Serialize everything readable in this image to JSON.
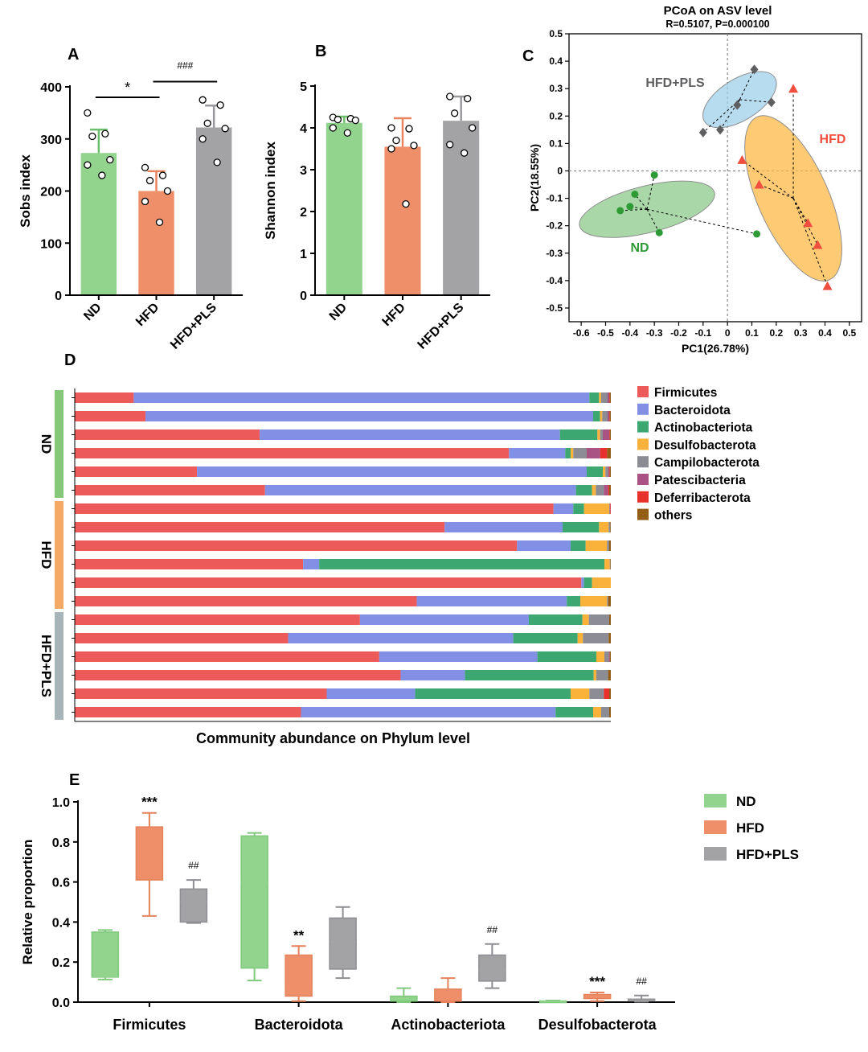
{
  "chart_data": [
    {
      "panel": "A",
      "type": "bar",
      "ylabel": "Sobs index",
      "ylim": [
        0,
        400
      ],
      "yticks": [
        0,
        100,
        200,
        300,
        400
      ],
      "categories": [
        "ND",
        "HFD",
        "HFD+PLS"
      ],
      "colors": [
        "#92d38e",
        "#ee8f6a",
        "#a3a3a6"
      ],
      "errcolors": [
        "#6cbf6a",
        "#e8845e",
        "#9a9a9e"
      ],
      "values": [
        273,
        200,
        322
      ],
      "err": [
        45,
        38,
        42
      ],
      "points": [
        [
          350,
          310,
          305,
          260,
          250,
          230
        ],
        [
          245,
          230,
          220,
          200,
          180,
          140
        ],
        [
          375,
          365,
          330,
          320,
          300,
          255
        ]
      ],
      "annotations": [
        {
          "text": "*",
          "from": 0,
          "to": 1,
          "y": 380
        },
        {
          "text": "###",
          "from": 1,
          "to": 2,
          "y": 410
        }
      ]
    },
    {
      "panel": "B",
      "type": "bar",
      "ylabel": "Shannon index",
      "ylim": [
        0,
        5
      ],
      "yticks": [
        0,
        1,
        2,
        3,
        4,
        5
      ],
      "categories": [
        "ND",
        "HFD",
        "HFD+PLS"
      ],
      "colors": [
        "#92d38e",
        "#ee8f6a",
        "#a3a3a6"
      ],
      "errcolors": [
        "#6cbf6a",
        "#e8845e",
        "#9a9a9e"
      ],
      "values": [
        4.12,
        3.55,
        4.17
      ],
      "err": [
        0.15,
        0.68,
        0.58
      ],
      "points": [
        [
          4.25,
          4.22,
          4.2,
          4.18,
          4.0,
          3.88
        ],
        [
          4.0,
          3.98,
          3.7,
          3.58,
          3.5,
          2.18
        ],
        [
          4.75,
          4.7,
          4.35,
          4.0,
          3.6,
          3.4
        ]
      ]
    },
    {
      "panel": "C",
      "type": "scatter",
      "title": "PCoA on ASV level",
      "subtitle": "R=0.5107, P=0.000100",
      "xlabel": "PC1(26.78%)",
      "ylabel": "PC2(18.55%)",
      "xlim": [
        -0.65,
        0.55
      ],
      "ylim": [
        -0.55,
        0.5
      ],
      "xticks": [
        -0.6,
        -0.5,
        -0.4,
        -0.3,
        -0.2,
        -0.1,
        0,
        0.1,
        0.2,
        0.3,
        0.4,
        0.5
      ],
      "yticks": [
        0.5,
        0.4,
        0.3,
        0.2,
        0.1,
        0,
        -0.1,
        -0.2,
        -0.3,
        -0.4,
        -0.5
      ],
      "series": [
        {
          "name": "ND",
          "color": "#2e9b36",
          "fill": "#8cc98a",
          "marker": "circle",
          "centroid": [
            -0.33,
            -0.14
          ],
          "ellipse": {
            "rx": 0.285,
            "ry": 0.085,
            "angle": -14
          },
          "points": [
            [
              -0.3,
              -0.015
            ],
            [
              -0.38,
              -0.085
            ],
            [
              -0.44,
              -0.145
            ],
            [
              -0.4,
              -0.13
            ],
            [
              -0.28,
              -0.225
            ],
            [
              0.12,
              -0.23
            ]
          ]
        },
        {
          "name": "HFD",
          "color": "#f04e3e",
          "fill": "#fdb844",
          "marker": "triangle",
          "centroid": [
            0.27,
            -0.1
          ],
          "ellipse": {
            "rx": 0.145,
            "ry": 0.325,
            "angle": -24
          },
          "points": [
            [
              0.27,
              0.3
            ],
            [
              0.06,
              0.04
            ],
            [
              0.13,
              -0.05
            ],
            [
              0.33,
              -0.19
            ],
            [
              0.37,
              -0.27
            ],
            [
              0.41,
              -0.42
            ]
          ]
        },
        {
          "name": "HFD+PLS",
          "color": "#5f5f62",
          "fill": "#9fcfe9",
          "marker": "diamond",
          "centroid": [
            0.05,
            0.26
          ],
          "ellipse": {
            "rx": 0.17,
            "ry": 0.075,
            "angle": -32
          },
          "points": [
            [
              0.11,
              0.37
            ],
            [
              0.04,
              0.24
            ],
            [
              0.18,
              0.25
            ],
            [
              -0.1,
              0.14
            ],
            [
              -0.03,
              0.15
            ]
          ]
        }
      ]
    },
    {
      "panel": "D",
      "type": "bar",
      "stacked": true,
      "orientation": "horizontal",
      "xlabel": "Community abundance on Phylum level",
      "groups": [
        {
          "name": "ND",
          "color": "#86c87a",
          "rows": [
            0,
            5
          ]
        },
        {
          "name": "HFD",
          "color": "#f4a967",
          "rows": [
            6,
            11
          ]
        },
        {
          "name": "HFD+PLS",
          "color": "#a7b4b8",
          "rows": [
            12,
            17
          ]
        }
      ],
      "legend": [
        {
          "name": "Firmicutes",
          "color": "#ed5a5a"
        },
        {
          "name": "Bacteroidota",
          "color": "#8190e4"
        },
        {
          "name": "Actinobacteriota",
          "color": "#3ca770"
        },
        {
          "name": "Desulfobacterota",
          "color": "#fbb23a"
        },
        {
          "name": "Campilobacterota",
          "color": "#8c8c94"
        },
        {
          "name": "Patescibacteria",
          "color": "#a85384"
        },
        {
          "name": "Deferribacterota",
          "color": "#e8312c"
        },
        {
          "name": "others",
          "color": "#935d16"
        }
      ],
      "rows": [
        [
          0.11,
          0.85,
          0.018,
          0.004,
          0.012,
          0.003,
          0.001,
          0.002
        ],
        [
          0.132,
          0.835,
          0.013,
          0.004,
          0.01,
          0.003,
          0.001,
          0.002
        ],
        [
          0.345,
          0.56,
          0.07,
          0.005,
          0.005,
          0.012,
          0.001,
          0.002
        ],
        [
          0.81,
          0.105,
          0.01,
          0.005,
          0.025,
          0.025,
          0.013,
          0.007
        ],
        [
          0.228,
          0.727,
          0.03,
          0.005,
          0.005,
          0.002,
          0.001,
          0.002
        ],
        [
          0.355,
          0.58,
          0.03,
          0.007,
          0.015,
          0.008,
          0.002,
          0.003
        ],
        [
          0.893,
          0.037,
          0.02,
          0.047,
          0.001,
          0.001,
          0.001,
          0.0
        ],
        [
          0.69,
          0.22,
          0.068,
          0.018,
          0.003,
          0.0,
          0.0,
          0.001
        ],
        [
          0.825,
          0.1,
          0.028,
          0.04,
          0.004,
          0.0,
          0.0,
          0.003
        ],
        [
          0.426,
          0.03,
          0.532,
          0.01,
          0.001,
          0.0,
          0.0,
          0.001
        ],
        [
          0.945,
          0.005,
          0.015,
          0.035,
          0.0,
          0.0,
          0.0,
          0.0
        ],
        [
          0.638,
          0.28,
          0.025,
          0.05,
          0.002,
          0.0,
          0.0,
          0.005
        ],
        [
          0.532,
          0.315,
          0.1,
          0.012,
          0.038,
          0.0,
          0.0,
          0.003
        ],
        [
          0.398,
          0.42,
          0.12,
          0.01,
          0.048,
          0.0,
          0.0,
          0.004
        ],
        [
          0.568,
          0.295,
          0.11,
          0.015,
          0.008,
          0.002,
          0.0,
          0.002
        ],
        [
          0.608,
          0.12,
          0.24,
          0.005,
          0.022,
          0.0,
          0.0,
          0.005
        ],
        [
          0.47,
          0.165,
          0.29,
          0.035,
          0.027,
          0.0,
          0.01,
          0.003
        ],
        [
          0.422,
          0.475,
          0.07,
          0.015,
          0.015,
          0.0,
          0.0,
          0.003
        ]
      ]
    },
    {
      "panel": "E",
      "type": "box",
      "ylabel": "Relative proportion",
      "ylim": [
        0,
        1.0
      ],
      "yticks": [
        0.0,
        0.2,
        0.4,
        0.6,
        0.8,
        1.0
      ],
      "categories": [
        "Firmicutes",
        "Bacteroidota",
        "Actinobacteriota",
        "Desulfobacterota"
      ],
      "legend": [
        {
          "name": "ND",
          "color": "#92d38e"
        },
        {
          "name": "HFD",
          "color": "#ee8f6a"
        },
        {
          "name": "HFD+PLS",
          "color": "#a3a3a6"
        }
      ],
      "boxes": [
        [
          {
            "min": 0.113,
            "q1": 0.125,
            "median": 0.125,
            "q3": 0.35,
            "max": 0.36
          },
          {
            "min": 0.43,
            "q1": 0.61,
            "median": 0.72,
            "q3": 0.875,
            "max": 0.945,
            "sig": "***"
          },
          {
            "min": 0.395,
            "q1": 0.4,
            "median": 0.5,
            "q3": 0.565,
            "max": 0.61,
            "sig": "##"
          }
        ],
        [
          {
            "min": 0.108,
            "q1": 0.17,
            "median": 0.6,
            "q3": 0.83,
            "max": 0.845
          },
          {
            "min": 0.005,
            "q1": 0.03,
            "median": 0.08,
            "q3": 0.235,
            "max": 0.28,
            "sig": "**"
          },
          {
            "min": 0.12,
            "q1": 0.165,
            "median": 0.3,
            "q3": 0.42,
            "max": 0.475
          }
        ],
        [
          {
            "min": 0.0,
            "q1": 0.005,
            "median": 0.015,
            "q3": 0.03,
            "max": 0.07
          },
          {
            "min": 0.0,
            "q1": 0.005,
            "median": 0.025,
            "q3": 0.065,
            "max": 0.12
          },
          {
            "min": 0.07,
            "q1": 0.105,
            "median": 0.16,
            "q3": 0.235,
            "max": 0.29,
            "sig": "##"
          }
        ],
        [
          {
            "min": 0.0,
            "q1": 0.002,
            "median": 0.004,
            "q3": 0.006,
            "max": 0.008
          },
          {
            "min": 0.005,
            "q1": 0.018,
            "median": 0.03,
            "q3": 0.038,
            "max": 0.048,
            "sig": "***"
          },
          {
            "min": 0.002,
            "q1": 0.006,
            "median": 0.01,
            "q3": 0.015,
            "max": 0.033,
            "sig": "##"
          }
        ]
      ]
    }
  ],
  "panel_labels": {
    "A": "A",
    "B": "B",
    "C": "C",
    "D": "D",
    "E": "E"
  }
}
